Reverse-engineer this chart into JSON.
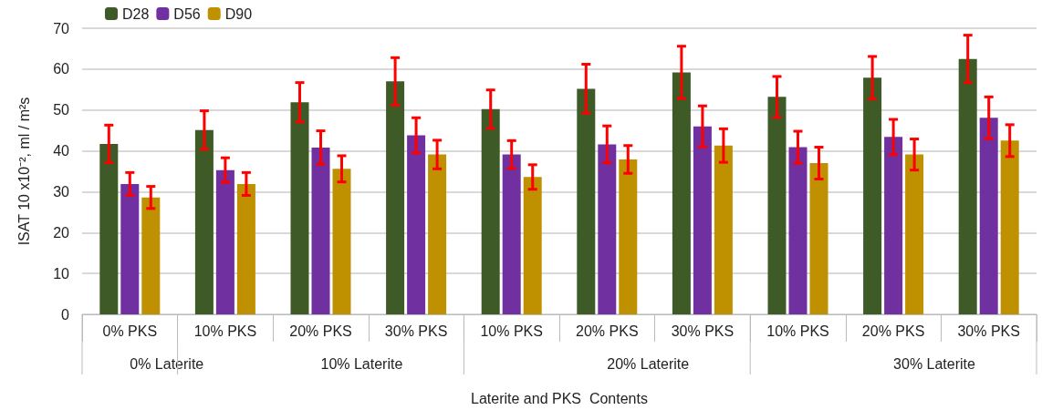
{
  "chart_data": {
    "type": "bar",
    "xlabel": "Laterite and PKS  Contents",
    "ylabel": "ISAT 10 x10⁻², ml / m²s",
    "categories": [
      "0% PKS",
      "10% PKS",
      "20% PKS",
      "30% PKS",
      "10% PKS",
      "20% PKS",
      "30% PKS",
      "10% PKS",
      "20% PKS",
      "30% PKS"
    ],
    "series": [
      {
        "name": "D28",
        "color": "#3d5a27",
        "values": [
          41.7,
          45.1,
          51.9,
          57.0,
          50.2,
          55.2,
          59.2,
          53.2,
          57.9,
          62.5
        ],
        "errors": [
          4.6,
          4.7,
          4.8,
          5.8,
          4.7,
          6.0,
          6.4,
          5.0,
          5.2,
          5.8
        ]
      },
      {
        "name": "D56",
        "color": "#7030a0",
        "values": [
          31.9,
          35.3,
          40.8,
          43.8,
          39.1,
          41.6,
          46.0,
          40.9,
          43.4,
          48.1
        ],
        "errors": [
          2.8,
          3.0,
          4.1,
          4.3,
          3.4,
          4.5,
          5.0,
          3.9,
          4.3,
          5.1
        ]
      },
      {
        "name": "D90",
        "color": "#bf9000",
        "values": [
          28.6,
          31.9,
          35.6,
          39.1,
          33.6,
          37.9,
          41.3,
          37.0,
          39.1,
          42.5
        ],
        "errors": [
          2.7,
          2.8,
          3.2,
          3.5,
          3.0,
          3.4,
          4.1,
          3.9,
          3.8,
          3.9
        ]
      }
    ],
    "ylim": [
      0,
      70
    ],
    "yticks": [
      0,
      10,
      20,
      30,
      40,
      50,
      60,
      70
    ],
    "grid": "y",
    "legend": "top left",
    "annotations": [
      "0% Laterite",
      "10% Laterite",
      "20% Laterite",
      "30% Laterite"
    ]
  }
}
